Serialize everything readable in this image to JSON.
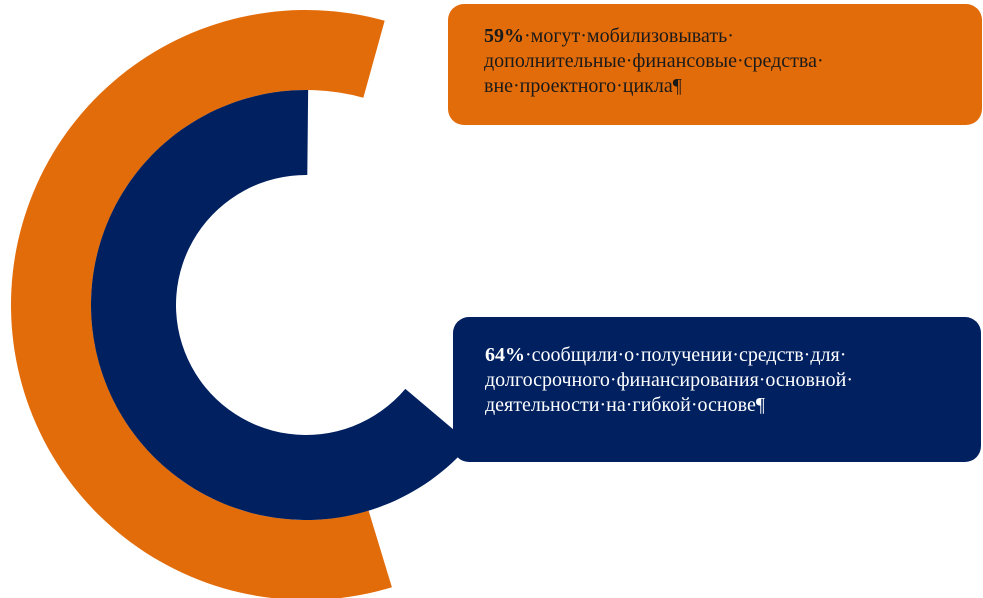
{
  "chart_data": {
    "type": "donut",
    "series": [
      {
        "value": 59,
        "color": "#E36C0A"
      },
      {
        "value": 64,
        "color": "#002060"
      }
    ]
  },
  "callouts": {
    "orange": {
      "pct": "59%",
      "text": "·могут·мобилизовывать·",
      "line2": "дополнительные·финансовые·средства·",
      "line3": "вне·проектного·цикла¶"
    },
    "navy": {
      "pct": "64%",
      "line1": "·сообщили·о·получении·средств·для·",
      "line2": "долгосрочного·финансирования·основной·",
      "line3": "деятельности·на·гибкой·основе¶"
    }
  },
  "colors": {
    "orange": "#E36C0A",
    "navy": "#002060"
  }
}
